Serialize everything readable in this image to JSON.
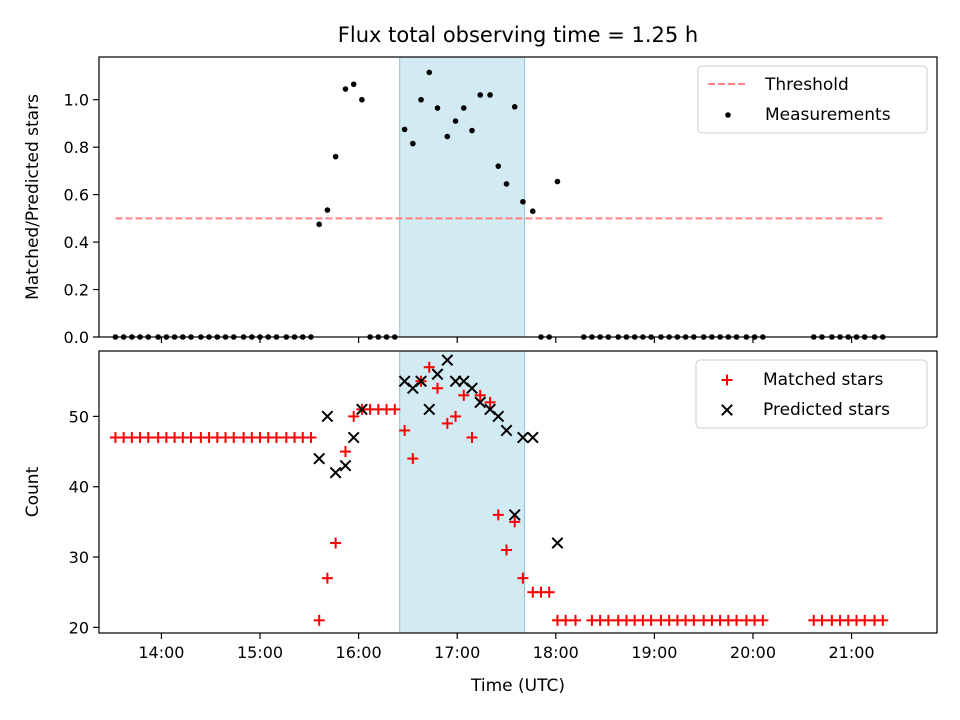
{
  "title": "Flux total observing time = 1.25 h",
  "chart_data": [
    {
      "type": "scatter",
      "title": "Flux total observing time = 1.25 h",
      "xlabel": "",
      "ylabel": "Matched/Predicted stars",
      "xlim": [
        "13:22",
        "21:52"
      ],
      "ylim": [
        0,
        1.18
      ],
      "y_ticks": [
        "0.0",
        "0.2",
        "0.4",
        "0.6",
        "0.8",
        "1.0"
      ],
      "highlight_span": [
        "16:25",
        "17:41"
      ],
      "highlight_color": "#add8e6",
      "legend_position": "upper right",
      "threshold": {
        "name": "Threshold",
        "value": 0.5,
        "x_range": [
          "13:32",
          "21:19"
        ],
        "color": "#ff8080",
        "style": "dashed"
      },
      "series": [
        {
          "name": "Measurements",
          "color": "#000000",
          "marker": "dot",
          "points": [
            [
              "13:32",
              0
            ],
            [
              "13:37",
              0
            ],
            [
              "13:42",
              0
            ],
            [
              "13:47",
              0
            ],
            [
              "13:52",
              0
            ],
            [
              "13:58",
              0
            ],
            [
              "14:03",
              0
            ],
            [
              "14:08",
              0
            ],
            [
              "14:13",
              0
            ],
            [
              "14:18",
              0
            ],
            [
              "14:24",
              0
            ],
            [
              "14:29",
              0
            ],
            [
              "14:34",
              0
            ],
            [
              "14:39",
              0
            ],
            [
              "14:44",
              0
            ],
            [
              "14:50",
              0
            ],
            [
              "14:55",
              0
            ],
            [
              "15:00",
              0
            ],
            [
              "15:05",
              0
            ],
            [
              "15:10",
              0
            ],
            [
              "15:16",
              0
            ],
            [
              "15:21",
              0
            ],
            [
              "15:26",
              0
            ],
            [
              "15:31",
              0
            ],
            [
              "15:36",
              0.475
            ],
            [
              "15:41",
              0.535
            ],
            [
              "15:46",
              0.76
            ],
            [
              "15:52",
              1.045
            ],
            [
              "15:57",
              1.065
            ],
            [
              "16:02",
              1.0
            ],
            [
              "16:07",
              0
            ],
            [
              "16:12",
              0
            ],
            [
              "16:17",
              0
            ],
            [
              "16:22",
              0
            ],
            [
              "16:28",
              0.875
            ],
            [
              "16:33",
              0.815
            ],
            [
              "16:38",
              1.0
            ],
            [
              "16:43",
              1.115
            ],
            [
              "16:48",
              0.965
            ],
            [
              "16:54",
              0.845
            ],
            [
              "16:59",
              0.91
            ],
            [
              "17:04",
              0.965
            ],
            [
              "17:09",
              0.87
            ],
            [
              "17:14",
              1.02
            ],
            [
              "17:20",
              1.02
            ],
            [
              "17:25",
              0.72
            ],
            [
              "17:30",
              0.645
            ],
            [
              "17:35",
              0.97
            ],
            [
              "17:40",
              0.57
            ],
            [
              "17:46",
              0.53
            ],
            [
              "17:51",
              0
            ],
            [
              "17:56",
              0
            ],
            [
              "18:01",
              0.655
            ],
            [
              "18:17",
              0
            ],
            [
              "18:22",
              0
            ],
            [
              "18:27",
              0
            ],
            [
              "18:32",
              0
            ],
            [
              "18:38",
              0
            ],
            [
              "18:43",
              0
            ],
            [
              "18:48",
              0
            ],
            [
              "18:53",
              0
            ],
            [
              "18:58",
              0
            ],
            [
              "19:04",
              0
            ],
            [
              "19:09",
              0
            ],
            [
              "19:14",
              0
            ],
            [
              "19:19",
              0
            ],
            [
              "19:24",
              0
            ],
            [
              "19:30",
              0
            ],
            [
              "19:35",
              0
            ],
            [
              "19:40",
              0
            ],
            [
              "19:45",
              0
            ],
            [
              "19:50",
              0
            ],
            [
              "19:56",
              0
            ],
            [
              "20:01",
              0
            ],
            [
              "20:06",
              0
            ],
            [
              "20:37",
              0
            ],
            [
              "20:42",
              0
            ],
            [
              "20:48",
              0
            ],
            [
              "20:53",
              0
            ],
            [
              "20:58",
              0
            ],
            [
              "21:03",
              0
            ],
            [
              "21:08",
              0
            ],
            [
              "21:14",
              0
            ],
            [
              "21:19",
              0
            ]
          ]
        }
      ]
    },
    {
      "type": "scatter",
      "xlabel": "Time (UTC)",
      "ylabel": "Count",
      "xlim": [
        "13:22",
        "21:52"
      ],
      "ylim": [
        19.2,
        59.3
      ],
      "x_ticks": [
        "14:00",
        "15:00",
        "16:00",
        "17:00",
        "18:00",
        "19:00",
        "20:00",
        "21:00"
      ],
      "y_ticks": [
        "20",
        "30",
        "40",
        "50"
      ],
      "highlight_span": [
        "16:25",
        "17:41"
      ],
      "highlight_color": "#add8e6",
      "legend_position": "upper right",
      "series": [
        {
          "name": "Matched stars",
          "color": "#ff0000",
          "marker": "plus",
          "points": [
            [
              "13:32",
              47
            ],
            [
              "13:37",
              47
            ],
            [
              "13:42",
              47
            ],
            [
              "13:47",
              47
            ],
            [
              "13:52",
              47
            ],
            [
              "13:58",
              47
            ],
            [
              "14:03",
              47
            ],
            [
              "14:08",
              47
            ],
            [
              "14:13",
              47
            ],
            [
              "14:18",
              47
            ],
            [
              "14:24",
              47
            ],
            [
              "14:29",
              47
            ],
            [
              "14:34",
              47
            ],
            [
              "14:39",
              47
            ],
            [
              "14:44",
              47
            ],
            [
              "14:50",
              47
            ],
            [
              "14:55",
              47
            ],
            [
              "15:00",
              47
            ],
            [
              "15:05",
              47
            ],
            [
              "15:10",
              47
            ],
            [
              "15:16",
              47
            ],
            [
              "15:21",
              47
            ],
            [
              "15:26",
              47
            ],
            [
              "15:31",
              47
            ],
            [
              "15:36",
              21
            ],
            [
              "15:41",
              27
            ],
            [
              "15:46",
              32
            ],
            [
              "15:52",
              45
            ],
            [
              "15:57",
              50
            ],
            [
              "16:02",
              51
            ],
            [
              "16:07",
              51
            ],
            [
              "16:12",
              51
            ],
            [
              "16:17",
              51
            ],
            [
              "16:22",
              51
            ],
            [
              "16:28",
              48
            ],
            [
              "16:33",
              44
            ],
            [
              "16:38",
              55
            ],
            [
              "16:43",
              57
            ],
            [
              "16:48",
              54
            ],
            [
              "16:54",
              49
            ],
            [
              "16:59",
              50
            ],
            [
              "17:04",
              53
            ],
            [
              "17:09",
              47
            ],
            [
              "17:14",
              53
            ],
            [
              "17:20",
              52
            ],
            [
              "17:25",
              36
            ],
            [
              "17:30",
              31
            ],
            [
              "17:35",
              35
            ],
            [
              "17:40",
              27
            ],
            [
              "17:46",
              25
            ],
            [
              "17:51",
              25
            ],
            [
              "17:56",
              25
            ],
            [
              "18:01",
              21
            ],
            [
              "18:06",
              21
            ],
            [
              "18:12",
              21
            ],
            [
              "18:22",
              21
            ],
            [
              "18:27",
              21
            ],
            [
              "18:32",
              21
            ],
            [
              "18:38",
              21
            ],
            [
              "18:43",
              21
            ],
            [
              "18:48",
              21
            ],
            [
              "18:53",
              21
            ],
            [
              "18:58",
              21
            ],
            [
              "19:04",
              21
            ],
            [
              "19:09",
              21
            ],
            [
              "19:14",
              21
            ],
            [
              "19:19",
              21
            ],
            [
              "19:24",
              21
            ],
            [
              "19:30",
              21
            ],
            [
              "19:35",
              21
            ],
            [
              "19:40",
              21
            ],
            [
              "19:45",
              21
            ],
            [
              "19:50",
              21
            ],
            [
              "19:56",
              21
            ],
            [
              "20:01",
              21
            ],
            [
              "20:06",
              21
            ],
            [
              "20:37",
              21
            ],
            [
              "20:42",
              21
            ],
            [
              "20:48",
              21
            ],
            [
              "20:53",
              21
            ],
            [
              "20:58",
              21
            ],
            [
              "21:03",
              21
            ],
            [
              "21:08",
              21
            ],
            [
              "21:14",
              21
            ],
            [
              "21:19",
              21
            ]
          ]
        },
        {
          "name": "Predicted stars",
          "color": "#000000",
          "marker": "x",
          "points": [
            [
              "15:36",
              44
            ],
            [
              "15:41",
              50
            ],
            [
              "15:46",
              42
            ],
            [
              "15:52",
              43
            ],
            [
              "15:57",
              47
            ],
            [
              "16:02",
              51
            ],
            [
              "16:28",
              55
            ],
            [
              "16:33",
              54
            ],
            [
              "16:38",
              55
            ],
            [
              "16:43",
              51
            ],
            [
              "16:48",
              56
            ],
            [
              "16:54",
              58
            ],
            [
              "16:59",
              55
            ],
            [
              "17:04",
              55
            ],
            [
              "17:09",
              54
            ],
            [
              "17:14",
              52
            ],
            [
              "17:20",
              51
            ],
            [
              "17:25",
              50
            ],
            [
              "17:30",
              48
            ],
            [
              "17:35",
              36
            ],
            [
              "17:40",
              47
            ],
            [
              "17:46",
              47
            ],
            [
              "18:01",
              32
            ]
          ]
        }
      ]
    }
  ]
}
